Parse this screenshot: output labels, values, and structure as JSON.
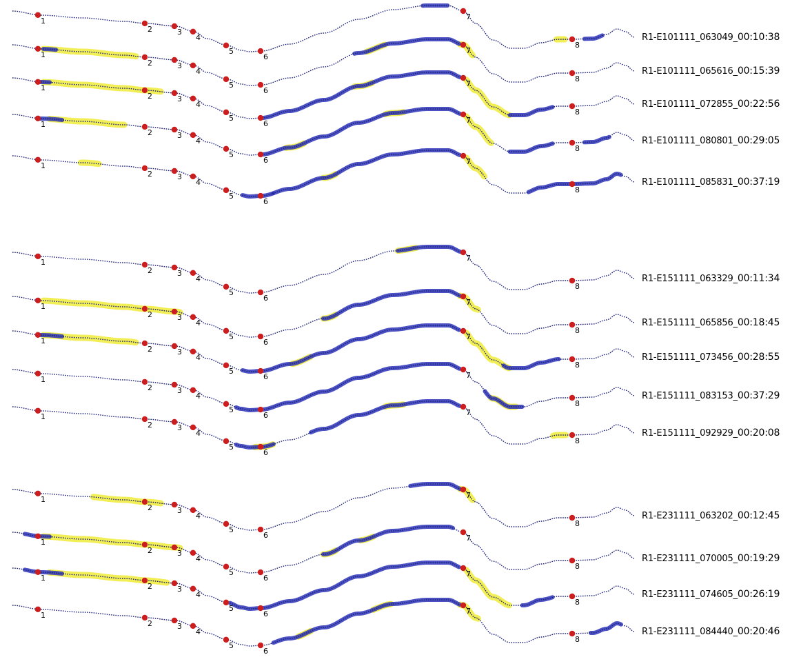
{
  "colors": {
    "track": "#1a1f7a",
    "thick": "#2b33b8",
    "highlight": "#f2ee55",
    "marker": "#cc1e1e",
    "text": "#000000"
  },
  "marker_labels": [
    "1",
    "2",
    "3",
    "4",
    "5",
    "6",
    "7",
    "8"
  ],
  "groups": [
    {
      "runs": [
        {
          "id": "R1-E101111_063049_",
          "duration": "00:10:38",
          "thick": [
            [
              0.66,
              0.7
            ],
            [
              0.92,
              0.95
            ]
          ],
          "yellow": [
            [
              0.875,
              0.89
            ]
          ]
        },
        {
          "id": "R1-E101111_065616_",
          "duration": "00:15:39",
          "thick": [
            [
              0.05,
              0.07
            ],
            [
              0.55,
              0.72
            ]
          ],
          "yellow": [
            [
              0.05,
              0.2
            ],
            [
              0.57,
              0.6
            ],
            [
              0.72,
              0.74
            ]
          ]
        },
        {
          "id": "R1-E101111_072855_",
          "duration": "00:22:56",
          "thick": [
            [
              0.04,
              0.06
            ],
            [
              0.4,
              0.72
            ],
            [
              0.8,
              0.87
            ]
          ],
          "yellow": [
            [
              0.05,
              0.24
            ],
            [
              0.55,
              0.58
            ],
            [
              0.73,
              0.8
            ]
          ]
        },
        {
          "id": "R1-E101111_080801_",
          "duration": "00:29:05",
          "thick": [
            [
              0.04,
              0.08
            ],
            [
              0.4,
              0.72
            ],
            [
              0.8,
              0.87
            ],
            [
              0.92,
              0.96
            ]
          ],
          "yellow": [
            [
              0.06,
              0.18
            ],
            [
              0.44,
              0.47
            ],
            [
              0.6,
              0.63
            ],
            [
              0.73,
              0.77
            ]
          ]
        },
        {
          "id": "R1-E101111_085831_",
          "duration": "00:37:19",
          "thick": [
            [
              0.37,
              0.42
            ],
            [
              0.42,
              0.72
            ],
            [
              0.83,
              0.98
            ]
          ],
          "yellow": [
            [
              0.11,
              0.14
            ],
            [
              0.5,
              0.52
            ],
            [
              0.73,
              0.76
            ]
          ]
        }
      ]
    },
    {
      "runs": [
        {
          "id": "R1-E151111_063329_",
          "duration": "00:11:34",
          "thick": [
            [
              0.62,
              0.72
            ]
          ],
          "yellow": [
            [
              0.62,
              0.65
            ]
          ]
        },
        {
          "id": "R1-E151111_065856_",
          "duration": "00:18:45",
          "thick": [
            [
              0.5,
              0.72
            ]
          ],
          "yellow": [
            [
              0.05,
              0.27
            ],
            [
              0.5,
              0.52
            ],
            [
              0.72,
              0.75
            ]
          ]
        },
        {
          "id": "R1-E151111_073456_",
          "duration": "00:28:55",
          "thick": [
            [
              0.04,
              0.08
            ],
            [
              0.37,
              0.72
            ],
            [
              0.79,
              0.88
            ]
          ],
          "yellow": [
            [
              0.05,
              0.2
            ],
            [
              0.45,
              0.48
            ],
            [
              0.73,
              0.8
            ]
          ]
        },
        {
          "id": "R1-E151111_083153_",
          "duration": "00:37:29",
          "thick": [
            [
              0.36,
              0.72
            ],
            [
              0.76,
              0.82
            ]
          ],
          "yellow": [
            [
              0.77,
              0.81
            ]
          ]
        },
        {
          "id": "R1-E151111_092929_",
          "duration": "00:20:08",
          "thick": [
            [
              0.36,
              0.42
            ],
            [
              0.48,
              0.72
            ]
          ],
          "yellow": [
            [
              0.39,
              0.42
            ],
            [
              0.6,
              0.63
            ],
            [
              0.87,
              0.89
            ]
          ]
        }
      ]
    },
    {
      "runs": [
        {
          "id": "R1-E231111_063202_",
          "duration": "00:12:45",
          "thick": [
            [
              0.64,
              0.72
            ]
          ],
          "yellow": [
            [
              0.13,
              0.24
            ],
            [
              0.72,
              0.74
            ]
          ]
        },
        {
          "id": "R1-E231111_070005_",
          "duration": "00:19:29",
          "thick": [
            [
              0.02,
              0.06
            ],
            [
              0.5,
              0.71
            ]
          ],
          "yellow": [
            [
              0.05,
              0.27
            ],
            [
              0.5,
              0.52
            ],
            [
              0.56,
              0.58
            ]
          ]
        },
        {
          "id": "R1-E231111_074605_",
          "duration": "00:26:19",
          "thick": [
            [
              0.02,
              0.08
            ],
            [
              0.35,
              0.72
            ],
            [
              0.82,
              0.87
            ]
          ],
          "yellow": [
            [
              0.06,
              0.25
            ],
            [
              0.73,
              0.8
            ]
          ]
        },
        {
          "id": "R1-E231111_084440_",
          "duration": "00:20:46",
          "thick": [
            [
              0.42,
              0.72
            ],
            [
              0.93,
              0.98
            ]
          ],
          "yellow": [
            [
              0.46,
              0.48
            ],
            [
              0.58,
              0.61
            ],
            [
              0.72,
              0.75
            ]
          ]
        }
      ]
    }
  ]
}
